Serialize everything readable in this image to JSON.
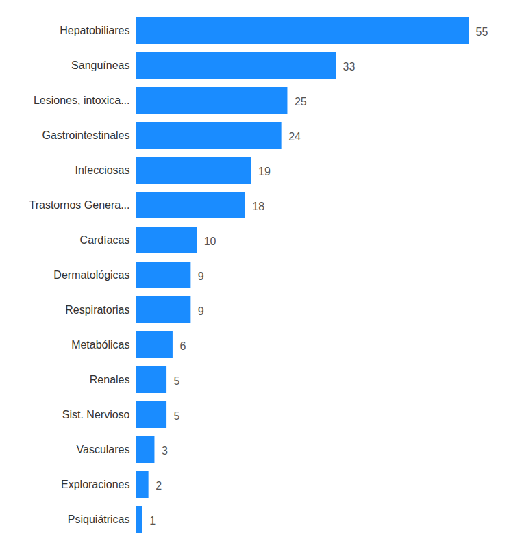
{
  "chart_data": {
    "type": "bar",
    "orientation": "horizontal",
    "categories": [
      "Hepatobiliares",
      "Sanguíneas",
      "Lesiones, intoxica...",
      "Gastrointestinales",
      "Infecciosas",
      "Trastornos Genera...",
      "Cardíacas",
      "Dermatológicas",
      "Respiratorias",
      "Metabólicas",
      "Renales",
      "Sist. Nervioso",
      "Vasculares",
      "Exploraciones",
      "Psiquiátricas"
    ],
    "values": [
      55,
      33,
      25,
      24,
      19,
      18,
      10,
      9,
      9,
      6,
      5,
      5,
      3,
      2,
      1
    ],
    "color": "#1a8cff",
    "xlim": [
      0,
      55
    ],
    "data_labels": true,
    "tick_labels": "y",
    "grid": false
  }
}
